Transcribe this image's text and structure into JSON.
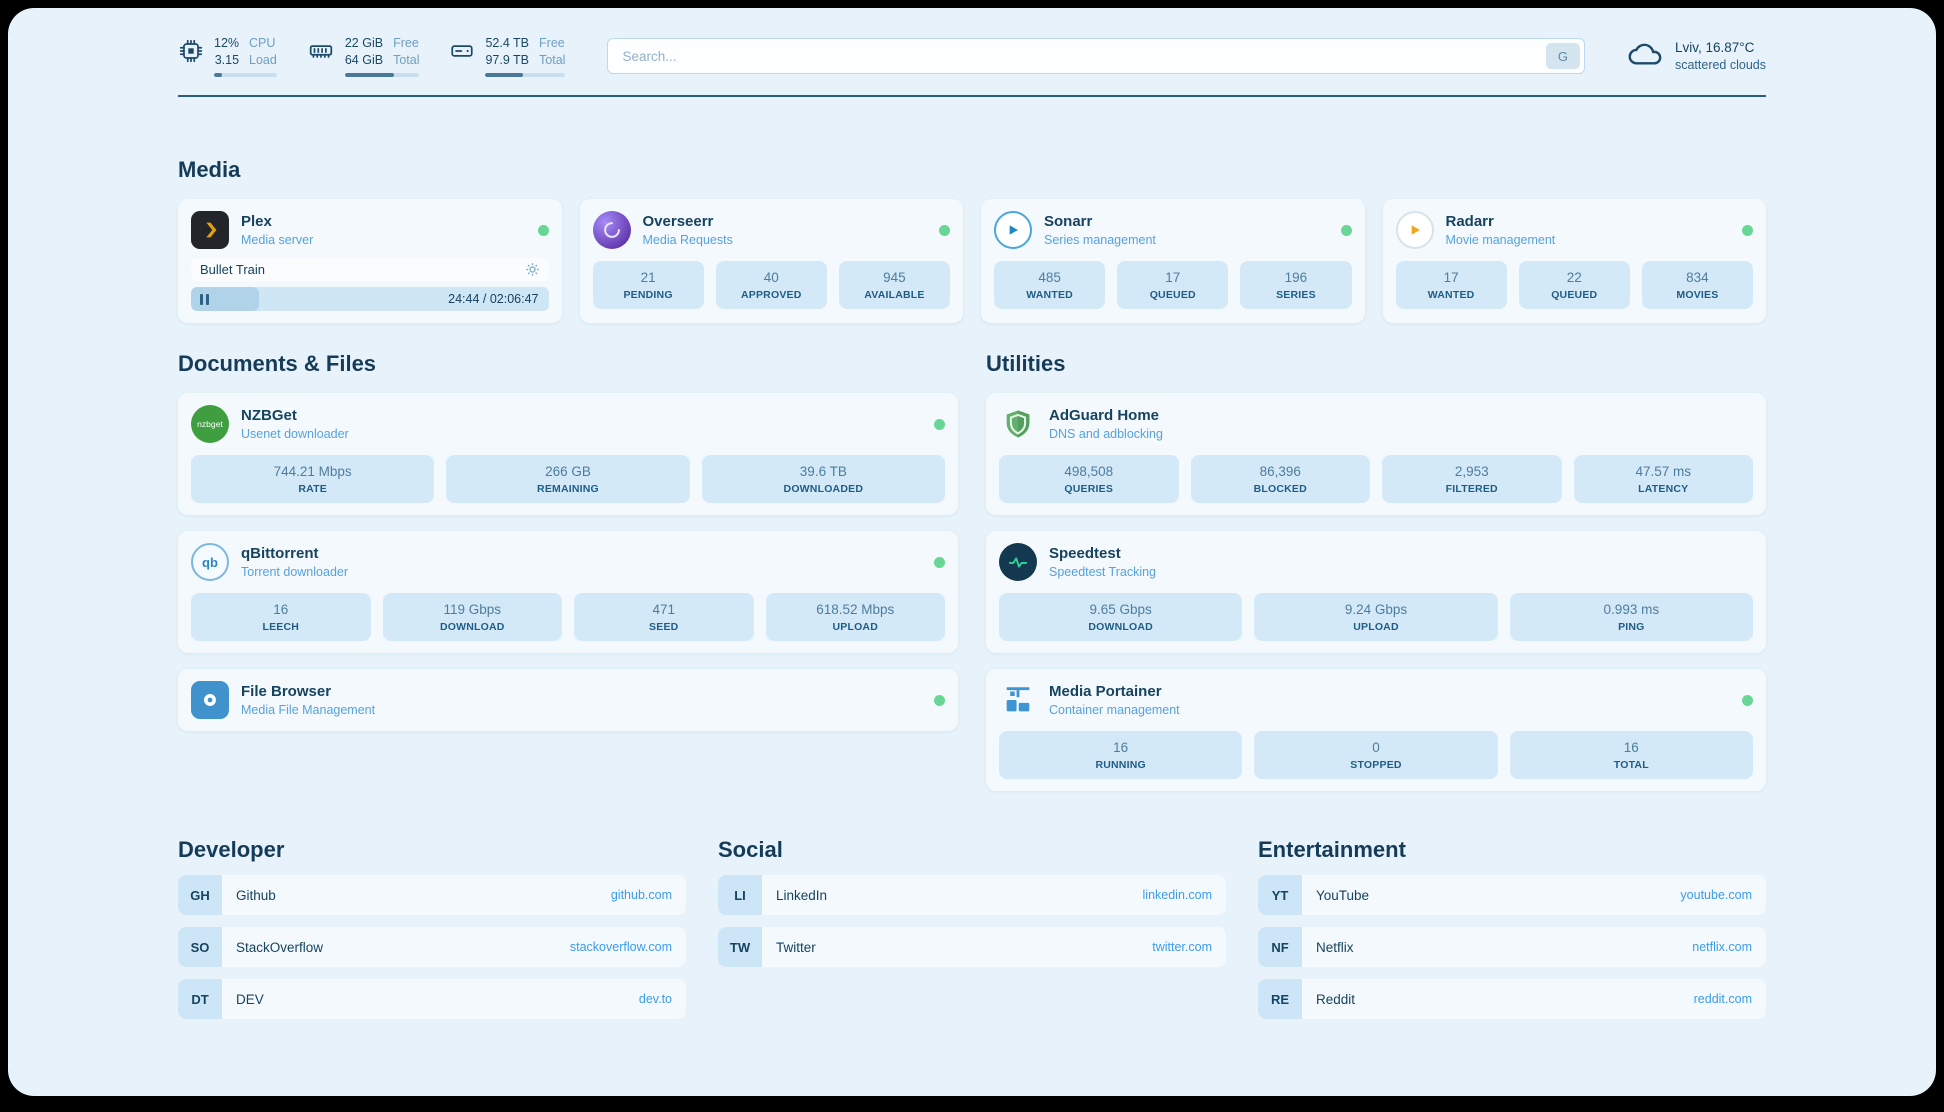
{
  "colors": {
    "status_online": "#68d694",
    "accent_link": "#3d9ce9",
    "background": "#e7f2fa"
  },
  "topbar": {
    "resources": {
      "cpu": {
        "value1": "12%",
        "value2": "3.15",
        "label1": "CPU",
        "label2": "Load",
        "percent": 12
      },
      "memory": {
        "value1": "22 GiB",
        "value2": "64 GiB",
        "label1": "Free",
        "label2": "Total",
        "percent": 66
      },
      "disk": {
        "value1": "52.4 TB",
        "value2": "97.9 TB",
        "label1": "Free",
        "label2": "Total",
        "percent": 47
      }
    },
    "search": {
      "placeholder": "Search...",
      "button": "G"
    },
    "weather": {
      "location": "Lviv, 16.87°C",
      "condition": "scattered clouds"
    }
  },
  "media": {
    "title": "Media",
    "cards": [
      {
        "name": "Plex",
        "subtitle": "Media server",
        "icon": "plex-icon",
        "status": "online",
        "player": {
          "track": "Bullet Train",
          "time": "24:44 / 02:06:47",
          "percent": 19
        }
      },
      {
        "name": "Overseerr",
        "subtitle": "Media Requests",
        "icon": "overseerr-icon",
        "status": "online",
        "stats": [
          {
            "value": "21",
            "label": "PENDING"
          },
          {
            "value": "40",
            "label": "APPROVED"
          },
          {
            "value": "945",
            "label": "AVAILABLE"
          }
        ]
      },
      {
        "name": "Sonarr",
        "subtitle": "Series management",
        "icon": "sonarr-icon",
        "status": "online",
        "stats": [
          {
            "value": "485",
            "label": "WANTED"
          },
          {
            "value": "17",
            "label": "QUEUED"
          },
          {
            "value": "196",
            "label": "SERIES"
          }
        ]
      },
      {
        "name": "Radarr",
        "subtitle": "Movie management",
        "icon": "radarr-icon",
        "status": "online",
        "stats": [
          {
            "value": "17",
            "label": "WANTED"
          },
          {
            "value": "22",
            "label": "QUEUED"
          },
          {
            "value": "834",
            "label": "MOVIES"
          }
        ]
      }
    ]
  },
  "documents": {
    "title": "Documents & Files",
    "cards": [
      {
        "name": "NZBGet",
        "subtitle": "Usenet downloader",
        "icon": "nzbget-icon",
        "icon_text": "nzbget",
        "status": "online",
        "stats": [
          {
            "value": "744.21 Mbps",
            "label": "RATE"
          },
          {
            "value": "266 GB",
            "label": "REMAINING"
          },
          {
            "value": "39.6 TB",
            "label": "DOWNLOADED"
          }
        ]
      },
      {
        "name": "qBittorrent",
        "subtitle": "Torrent downloader",
        "icon": "qbittorrent-icon",
        "icon_text": "qb",
        "status": "online",
        "stats": [
          {
            "value": "16",
            "label": "LEECH"
          },
          {
            "value": "119 Gbps",
            "label": "DOWNLOAD"
          },
          {
            "value": "471",
            "label": "SEED"
          },
          {
            "value": "618.52 Mbps",
            "label": "UPLOAD"
          }
        ]
      },
      {
        "name": "File Browser",
        "subtitle": "Media File Management",
        "icon": "filebrowser-icon",
        "status": "online",
        "stats": []
      }
    ]
  },
  "utilities": {
    "title": "Utilities",
    "cards": [
      {
        "name": "AdGuard Home",
        "subtitle": "DNS and adblocking",
        "icon": "adguard-icon",
        "stats": [
          {
            "value": "498,508",
            "label": "QUERIES"
          },
          {
            "value": "86,396",
            "label": "BLOCKED"
          },
          {
            "value": "2,953",
            "label": "FILTERED"
          },
          {
            "value": "47.57 ms",
            "label": "LATENCY"
          }
        ]
      },
      {
        "name": "Speedtest",
        "subtitle": "Speedtest Tracking",
        "icon": "speedtest-icon",
        "stats": [
          {
            "value": "9.65 Gbps",
            "label": "DOWNLOAD"
          },
          {
            "value": "9.24 Gbps",
            "label": "UPLOAD"
          },
          {
            "value": "0.993 ms",
            "label": "PING"
          }
        ]
      },
      {
        "name": "Media Portainer",
        "subtitle": "Container management",
        "icon": "portainer-icon",
        "status": "online",
        "stats": [
          {
            "value": "16",
            "label": "RUNNING"
          },
          {
            "value": "0",
            "label": "STOPPED"
          },
          {
            "value": "16",
            "label": "TOTAL"
          }
        ]
      }
    ]
  },
  "bookmarks": [
    {
      "title": "Developer",
      "links": [
        {
          "abbr": "GH",
          "name": "Github",
          "domain": "github.com"
        },
        {
          "abbr": "SO",
          "name": "StackOverflow",
          "domain": "stackoverflow.com"
        },
        {
          "abbr": "DT",
          "name": "DEV",
          "domain": "dev.to"
        }
      ]
    },
    {
      "title": "Social",
      "links": [
        {
          "abbr": "LI",
          "name": "LinkedIn",
          "domain": "linkedin.com"
        },
        {
          "abbr": "TW",
          "name": "Twitter",
          "domain": "twitter.com"
        }
      ]
    },
    {
      "title": "Entertainment",
      "links": [
        {
          "abbr": "YT",
          "name": "YouTube",
          "domain": "youtube.com"
        },
        {
          "abbr": "NF",
          "name": "Netflix",
          "domain": "netflix.com"
        },
        {
          "abbr": "RE",
          "name": "Reddit",
          "domain": "reddit.com"
        }
      ]
    }
  ]
}
